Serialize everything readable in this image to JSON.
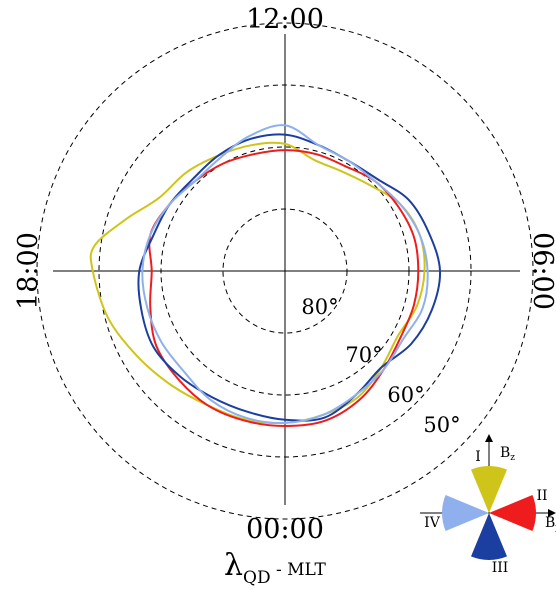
{
  "chart_data": {
    "type": "polar-line",
    "projection": "MLT-latitude polar dial",
    "mlt_labels": {
      "top": "12:00",
      "left": "18:00",
      "right": "06:00",
      "bottom": "00:00"
    },
    "xlabel": {
      "main": "λ",
      "sub": "QD",
      "suffix": " - MLT"
    },
    "latitude_circles": [
      {
        "lat": 80,
        "label": "80°"
      },
      {
        "lat": 70,
        "label": "70°"
      },
      {
        "lat": 60,
        "label": "60°"
      },
      {
        "lat": 50,
        "label": "50°"
      }
    ],
    "colors": {
      "I": "#cfc51a",
      "II": "#ee1c1c",
      "III": "#1b3fa0",
      "IV": "#8fb0ec"
    },
    "series": [
      {
        "sector": "I",
        "color": "#cfc51a",
        "colatitude_deg_by_mlt": [
          [
            12,
            20.5
          ],
          [
            13,
            21
          ],
          [
            14,
            21.5
          ],
          [
            15,
            22.5
          ],
          [
            16,
            23.5
          ],
          [
            16.8,
            27
          ],
          [
            17.5,
            31
          ],
          [
            18,
            31
          ],
          [
            19,
            29.5
          ],
          [
            20,
            27.5
          ],
          [
            21,
            26
          ],
          [
            22,
            25
          ],
          [
            23,
            24.8
          ],
          [
            0,
            24.5
          ],
          [
            1,
            24
          ],
          [
            2,
            23.5
          ],
          [
            3,
            22
          ],
          [
            4,
            21
          ],
          [
            5,
            22
          ],
          [
            6,
            22.5
          ],
          [
            7,
            22.5
          ],
          [
            8,
            21.5
          ],
          [
            9,
            19.5
          ],
          [
            10,
            18.5
          ],
          [
            11,
            18.5
          ]
        ]
      },
      {
        "sector": "II",
        "color": "#ee1c1c",
        "colatitude_deg_by_mlt": [
          [
            12,
            19.5
          ],
          [
            13,
            19.5
          ],
          [
            14,
            20
          ],
          [
            15,
            20.5
          ],
          [
            16,
            21.5
          ],
          [
            17,
            22.5
          ],
          [
            18,
            21.5
          ],
          [
            19,
            22.5
          ],
          [
            20,
            24
          ],
          [
            21,
            24.5
          ],
          [
            22,
            25
          ],
          [
            23,
            25
          ],
          [
            0,
            25
          ],
          [
            1,
            25
          ],
          [
            2,
            24
          ],
          [
            3,
            22.5
          ],
          [
            4,
            21.5
          ],
          [
            5,
            21.5
          ],
          [
            6,
            21.5
          ],
          [
            7,
            21.5
          ],
          [
            8,
            21
          ],
          [
            9,
            20.5
          ],
          [
            10,
            19.5
          ],
          [
            11,
            19.5
          ]
        ]
      },
      {
        "sector": "III",
        "color": "#1b3fa0",
        "colatitude_deg_by_mlt": [
          [
            12,
            22
          ],
          [
            13,
            22
          ],
          [
            14,
            21.5
          ],
          [
            15,
            21
          ],
          [
            16,
            21.5
          ],
          [
            17,
            22
          ],
          [
            18,
            23.5
          ],
          [
            19,
            24
          ],
          [
            20,
            24.5
          ],
          [
            21,
            24
          ],
          [
            22,
            23.5
          ],
          [
            23,
            23.5
          ],
          [
            0,
            24
          ],
          [
            1,
            24.5
          ],
          [
            2,
            23
          ],
          [
            3,
            22
          ],
          [
            4,
            23.5
          ],
          [
            5,
            24.5
          ],
          [
            6,
            25
          ],
          [
            7,
            24
          ],
          [
            8,
            23
          ],
          [
            9,
            21
          ],
          [
            10,
            20.5
          ],
          [
            11,
            21
          ]
        ]
      },
      {
        "sector": "IV",
        "color": "#8fb0ec",
        "colatitude_deg_by_mlt": [
          [
            12,
            23.5
          ],
          [
            13,
            22.5
          ],
          [
            14,
            21
          ],
          [
            15,
            20.5
          ],
          [
            16,
            21.5
          ],
          [
            17,
            22.5
          ],
          [
            18,
            23
          ],
          [
            19,
            23
          ],
          [
            20,
            23
          ],
          [
            21,
            23
          ],
          [
            22,
            24
          ],
          [
            23,
            24.5
          ],
          [
            0,
            24.5
          ],
          [
            1,
            24
          ],
          [
            2,
            23
          ],
          [
            3,
            22.5
          ],
          [
            4,
            22
          ],
          [
            5,
            23
          ],
          [
            6,
            23
          ],
          [
            7,
            22.5
          ],
          [
            8,
            21.5
          ],
          [
            9,
            20.5
          ],
          [
            10,
            20.5
          ],
          [
            11,
            21
          ]
        ]
      }
    ],
    "legend": {
      "placement": "bottom-right",
      "axis_labels": {
        "bz": "B",
        "bz_sub": "z",
        "by": "B",
        "by_sub": "y"
      },
      "sectors": [
        {
          "label": "I",
          "direction": "north",
          "color": "#cfc51a"
        },
        {
          "label": "II",
          "direction": "east",
          "color": "#ee1c1c"
        },
        {
          "label": "III",
          "direction": "south",
          "color": "#1b3fa0"
        },
        {
          "label": "IV",
          "direction": "west",
          "color": "#8fb0ec"
        }
      ]
    }
  }
}
